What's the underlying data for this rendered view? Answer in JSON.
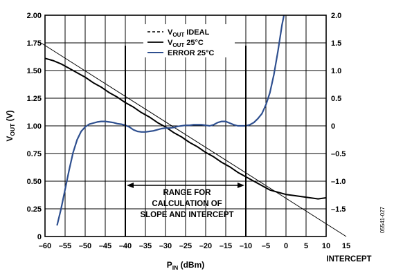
{
  "chart_data": {
    "type": "line",
    "xlabel": "P",
    "xlabel_sub": "IN",
    "xlabel_unit": " (dBm)",
    "ylabel": "V",
    "ylabel_sub": "OUT",
    "ylabel_unit": " (V)",
    "x_ticks": [
      -60,
      -55,
      -50,
      -45,
      -40,
      -35,
      -30,
      -25,
      -20,
      -15,
      -10,
      -5,
      0,
      5,
      10,
      15
    ],
    "x_tick_labels": [
      "–60",
      "–55",
      "–50",
      "–45",
      "–40",
      "–35",
      "–30",
      "–25",
      "–20",
      "–15",
      "–10",
      "–5",
      "0",
      "5",
      "10",
      "15"
    ],
    "xlim": [
      -60,
      10
    ],
    "y_ticks": [
      0,
      0.25,
      0.5,
      0.75,
      1.0,
      1.25,
      1.5,
      1.75,
      2.0
    ],
    "y_tick_labels": [
      "0",
      "0.25",
      "0.50",
      "0.75",
      "1.00",
      "1.25",
      "1.50",
      "1.75",
      "2.00"
    ],
    "ylim": [
      0,
      2.0
    ],
    "y2_ticks": [
      -2.0,
      -1.5,
      -1.0,
      -0.5,
      0,
      0.5,
      1.0,
      1.5,
      2.0
    ],
    "y2_tick_labels": [
      "",
      "–1.5",
      "–1.0",
      "–0.5",
      "0",
      "0.5",
      "1.0",
      "1.5",
      "2.0"
    ],
    "y2lim": [
      -2.0,
      2.0
    ],
    "grid": true,
    "legend_position": "top-center",
    "series": [
      {
        "name_main": "V",
        "name_sub": "OUT",
        "name_rest": " IDEAL",
        "style": "dashed",
        "color": "#000000",
        "axis": "left",
        "x": [
          -61,
          15
        ],
        "y": [
          1.75,
          0.0
        ]
      },
      {
        "name_main": "V",
        "name_sub": "OUT",
        "name_rest": " 25°C",
        "style": "solid",
        "color": "#000000",
        "axis": "left",
        "x": [
          -60,
          -58,
          -56,
          -54,
          -52,
          -50,
          -48,
          -46,
          -44,
          -42,
          -40,
          -38,
          -36,
          -34,
          -32,
          -30,
          -28,
          -26,
          -24,
          -22,
          -20,
          -18,
          -16,
          -14,
          -12,
          -10,
          -8,
          -6,
          -4,
          -2,
          0,
          2,
          4,
          6,
          8,
          10
        ],
        "y": [
          1.61,
          1.59,
          1.56,
          1.52,
          1.48,
          1.44,
          1.39,
          1.35,
          1.3,
          1.26,
          1.21,
          1.17,
          1.12,
          1.08,
          1.03,
          0.99,
          0.94,
          0.9,
          0.85,
          0.81,
          0.76,
          0.72,
          0.67,
          0.63,
          0.58,
          0.54,
          0.5,
          0.46,
          0.42,
          0.4,
          0.38,
          0.37,
          0.36,
          0.35,
          0.34,
          0.35
        ]
      },
      {
        "name_main": "ERROR",
        "name_sub": "",
        "name_rest": " 25°C",
        "style": "solid",
        "color": "#2e4f8f",
        "axis": "right",
        "x": [
          -57,
          -56,
          -55,
          -54,
          -53,
          -52,
          -51,
          -50,
          -49,
          -48,
          -47,
          -46,
          -45,
          -44,
          -43,
          -42,
          -41,
          -40,
          -39,
          -38,
          -37,
          -36,
          -35,
          -34,
          -33,
          -32,
          -31,
          -30,
          -29,
          -28,
          -27,
          -26,
          -25,
          -24,
          -23,
          -22,
          -21,
          -20,
          -19,
          -18,
          -17,
          -16,
          -15,
          -14,
          -13,
          -12,
          -11,
          -10,
          -9,
          -8,
          -7,
          -6,
          -5,
          -4,
          -3,
          -2,
          -1,
          -0.5
        ],
        "y": [
          -1.8,
          -1.5,
          -1.15,
          -0.8,
          -0.48,
          -0.25,
          -0.1,
          -0.02,
          0.03,
          0.05,
          0.07,
          0.08,
          0.08,
          0.07,
          0.06,
          0.04,
          0.03,
          0.01,
          -0.02,
          -0.07,
          -0.1,
          -0.11,
          -0.11,
          -0.1,
          -0.09,
          -0.07,
          -0.05,
          -0.04,
          -0.04,
          -0.03,
          -0.01,
          0.0,
          0.01,
          0.01,
          0.02,
          0.02,
          0.02,
          0.01,
          0.0,
          0.02,
          0.06,
          0.08,
          0.08,
          0.05,
          0.02,
          0.0,
          0.0,
          0.0,
          0.02,
          0.06,
          0.13,
          0.22,
          0.38,
          0.6,
          0.93,
          1.35,
          1.82,
          2.0
        ]
      }
    ],
    "annotations": {
      "range_text": [
        "RANGE FOR",
        "CALCULATION OF",
        "SLOPE AND INTERCEPT"
      ],
      "range_from": -40,
      "range_to": -10,
      "intercept_label": "INTERCEPT",
      "figure_number": "05541-027"
    }
  }
}
